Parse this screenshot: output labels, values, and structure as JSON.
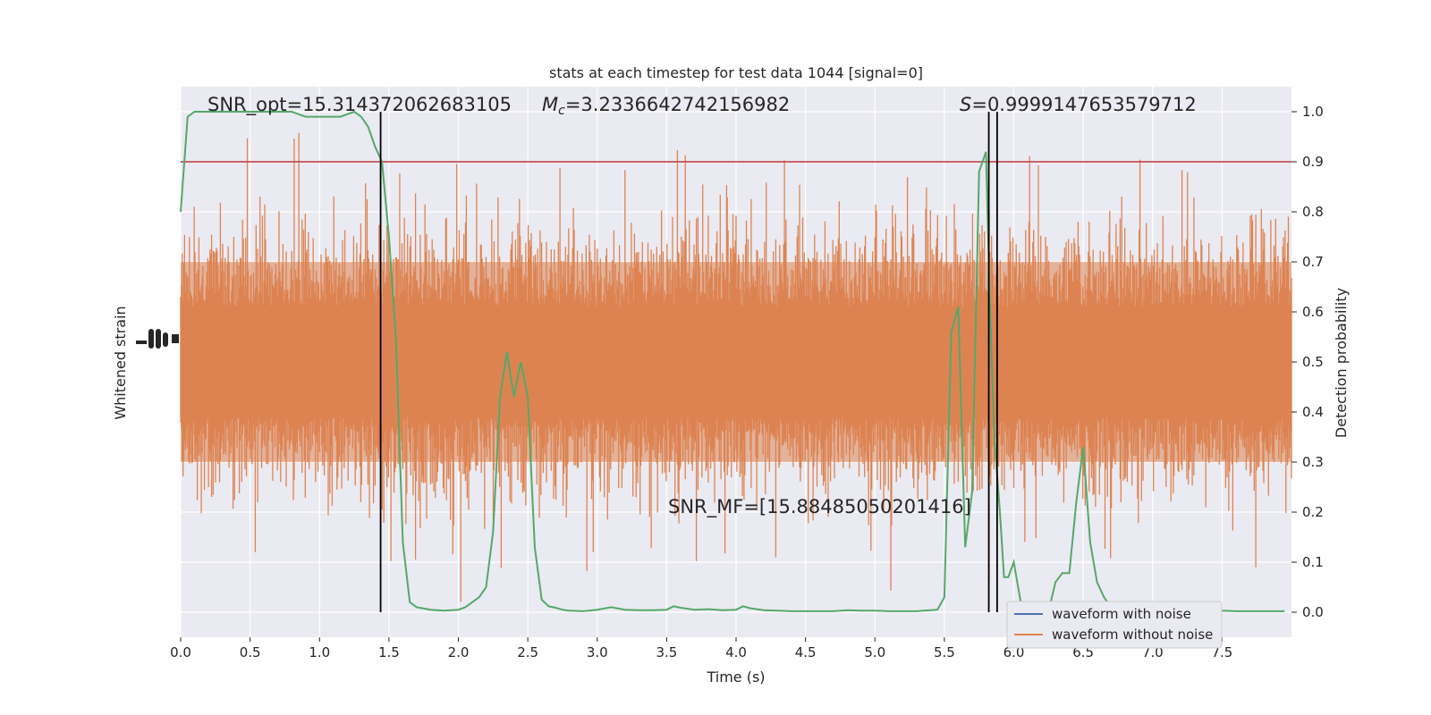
{
  "chart_data": {
    "type": "line",
    "title": "stats at each timestep for test data 1044 [signal=0]",
    "xlabel": "Time (s)",
    "ylabel_left": "Whitened strain",
    "ylabel_right": "Detection probability",
    "xlim": [
      0,
      8
    ],
    "ylim_right": [
      -0.05,
      1.05
    ],
    "x_ticks": [
      0.0,
      0.5,
      1.0,
      1.5,
      2.0,
      2.5,
      3.0,
      3.5,
      4.0,
      4.5,
      5.0,
      5.5,
      6.0,
      6.5,
      7.0,
      7.5
    ],
    "x_tick_labels": [
      "0.0",
      "0.5",
      "1.0",
      "1.5",
      "2.0",
      "2.5",
      "3.0",
      "3.5",
      "4.0",
      "4.5",
      "5.0",
      "5.5",
      "6.0",
      "6.5",
      "7.0",
      "7.5"
    ],
    "y_ticks_right": [
      0.0,
      0.1,
      0.2,
      0.3,
      0.4,
      0.5,
      0.6,
      0.7,
      0.8,
      0.9,
      1.0
    ],
    "y_tick_labels_right": [
      "0.0",
      "0.1",
      "0.2",
      "0.3",
      "0.4",
      "0.5",
      "0.6",
      "0.7",
      "0.8",
      "0.9",
      "1.0"
    ],
    "annotations": {
      "snr_opt": "SNR_opt=15.314372062683105",
      "mc_symbol": "M",
      "mc_sub": "c",
      "mc_value": "=3.2336642742156982",
      "s_symbol": "S",
      "s_value": "=0.9999147653579712",
      "snr_mf": "SNR_MF=[15.88485050201416]"
    },
    "threshold": 0.9,
    "vertical_lines": [
      1.44,
      5.82,
      5.88
    ],
    "legend": {
      "position": "lower-right",
      "entries": [
        {
          "label": "waveform with noise",
          "color": "#4c72b0"
        },
        {
          "label": "waveform without noise",
          "color": "#dd8452"
        }
      ]
    },
    "series": [
      {
        "name": "detection probability",
        "color": "#55a868",
        "x": [
          0.0,
          0.05,
          0.1,
          0.2,
          0.3,
          0.4,
          0.5,
          0.6,
          0.7,
          0.8,
          0.9,
          1.0,
          1.1,
          1.15,
          1.2,
          1.25,
          1.3,
          1.35,
          1.4,
          1.45,
          1.5,
          1.55,
          1.6,
          1.65,
          1.7,
          1.8,
          1.9,
          2.0,
          2.05,
          2.1,
          2.15,
          2.2,
          2.25,
          2.3,
          2.35,
          2.4,
          2.45,
          2.5,
          2.55,
          2.6,
          2.65,
          2.7,
          2.75,
          2.8,
          2.9,
          3.0,
          3.1,
          3.2,
          3.3,
          3.4,
          3.5,
          3.55,
          3.6,
          3.7,
          3.8,
          3.9,
          4.0,
          4.05,
          4.1,
          4.2,
          4.3,
          4.4,
          4.5,
          4.6,
          4.7,
          4.8,
          4.9,
          5.0,
          5.1,
          5.2,
          5.3,
          5.35,
          5.4,
          5.45,
          5.5,
          5.55,
          5.6,
          5.65,
          5.7,
          5.75,
          5.8,
          5.83,
          5.86,
          5.9,
          5.93,
          5.96,
          6.0,
          6.05,
          6.1,
          6.15,
          6.2,
          6.25,
          6.3,
          6.35,
          6.4,
          6.45,
          6.5,
          6.55,
          6.6,
          6.65,
          6.7,
          6.75,
          6.8,
          6.9,
          7.0,
          7.1,
          7.2,
          7.3,
          7.4,
          7.5,
          7.6,
          7.7,
          7.8,
          7.95
        ],
        "y": [
          0.8,
          0.99,
          1.0,
          1.0,
          1.0,
          1.0,
          1.0,
          1.0,
          1.0,
          1.0,
          0.99,
          0.99,
          0.99,
          0.99,
          0.995,
          1.0,
          0.99,
          0.97,
          0.93,
          0.9,
          0.75,
          0.55,
          0.14,
          0.02,
          0.01,
          0.005,
          0.003,
          0.005,
          0.01,
          0.02,
          0.03,
          0.05,
          0.16,
          0.43,
          0.52,
          0.43,
          0.5,
          0.43,
          0.13,
          0.025,
          0.012,
          0.009,
          0.005,
          0.003,
          0.002,
          0.005,
          0.01,
          0.005,
          0.004,
          0.004,
          0.005,
          0.012,
          0.009,
          0.005,
          0.006,
          0.004,
          0.005,
          0.012,
          0.008,
          0.004,
          0.003,
          0.002,
          0.002,
          0.002,
          0.002,
          0.004,
          0.003,
          0.003,
          0.002,
          0.002,
          0.002,
          0.003,
          0.004,
          0.005,
          0.03,
          0.56,
          0.61,
          0.13,
          0.24,
          0.88,
          0.92,
          0.6,
          0.35,
          0.2,
          0.07,
          0.07,
          0.1,
          0.02,
          0.005,
          0.003,
          0.0,
          0.001,
          0.06,
          0.078,
          0.078,
          0.22,
          0.33,
          0.14,
          0.06,
          0.03,
          0.01,
          0.005,
          0.004,
          0.003,
          0.002,
          0.002,
          0.002,
          0.002,
          0.002,
          0.003,
          0.002,
          0.002,
          0.002,
          0.002
        ]
      }
    ]
  }
}
